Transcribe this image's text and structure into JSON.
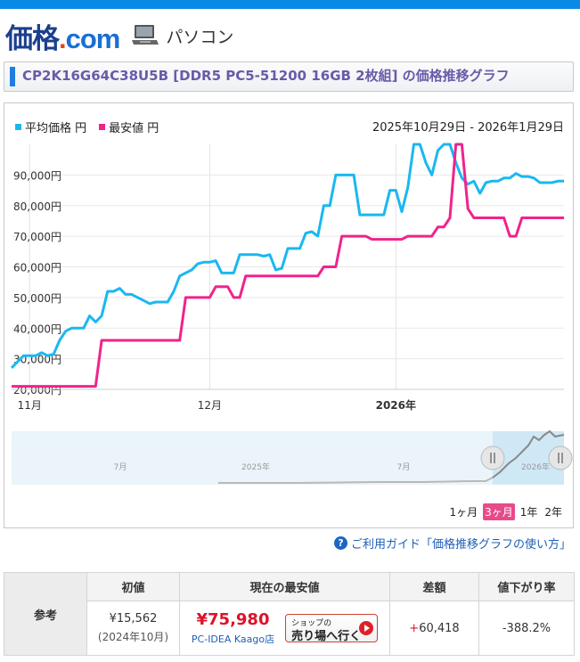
{
  "header": {
    "logo_main": "価格",
    "logo_dot": ".",
    "logo_com": "com",
    "section": "パソコン"
  },
  "title": "CP2K16G64C38U5B [DDR5 PC5-51200 16GB 2枚組] の価格推移グラフ",
  "legend": {
    "avg_label": "平均価格 円",
    "min_label": "最安値 円"
  },
  "date_range": "2025年10月29日 - 2026年1月29日",
  "periods": [
    {
      "label": "1ヶ月",
      "active": false
    },
    {
      "label": "3ヶ月",
      "active": true
    },
    {
      "label": "1年",
      "active": false
    },
    {
      "label": "2年",
      "active": false
    }
  ],
  "guide_text": "ご利用ガイド「価格推移グラフの使い方」",
  "summary": {
    "label": "参考",
    "headers": [
      "初値",
      "現在の最安値",
      "差額",
      "値下がり率"
    ],
    "initial_price": "¥15,562",
    "initial_date": "(2024年10月)",
    "current_lowest": "¥75,980",
    "shop_name": "PC-IDEA Kaago店",
    "shop_button_line1": "ショップの",
    "shop_button_line2": "売り場へ行く",
    "diff_sign": "+",
    "diff_value": "60,418",
    "rate": "-388.2%"
  },
  "colors": {
    "avg": "#1ab8f0",
    "min": "#f0238c",
    "accent_blue": "#0a8ae6"
  },
  "chart_data": {
    "type": "line",
    "title": "",
    "xlabel": "",
    "ylabel": "",
    "ylim": [
      20000,
      100000
    ],
    "yticks": [
      "20,000円",
      "30,000円",
      "40,000円",
      "50,000円",
      "60,000円",
      "70,000円",
      "80,000円",
      "90,000円"
    ],
    "yvals": [
      20000,
      30000,
      40000,
      50000,
      60000,
      70000,
      80000,
      90000
    ],
    "xlim": [
      0,
      92
    ],
    "xticks": [
      {
        "label": "11月",
        "x": 3,
        "bold": false
      },
      {
        "label": "12月",
        "x": 33,
        "bold": false
      },
      {
        "label": "2026年",
        "x": 64,
        "bold": true
      }
    ],
    "x_date_origin": "2025-10-29",
    "series": [
      {
        "name": "平均価格",
        "points": [
          [
            0,
            27000
          ],
          [
            1,
            29000
          ],
          [
            2,
            31000
          ],
          [
            3,
            31000
          ],
          [
            4,
            31000
          ],
          [
            5,
            32000
          ],
          [
            6,
            31000
          ],
          [
            7,
            31500
          ],
          [
            8,
            36000
          ],
          [
            9,
            39000
          ],
          [
            10,
            40000
          ],
          [
            11,
            40000
          ],
          [
            12,
            40000
          ],
          [
            13,
            44000
          ],
          [
            14,
            42000
          ],
          [
            15,
            44000
          ],
          [
            16,
            52000
          ],
          [
            17,
            52000
          ],
          [
            18,
            53000
          ],
          [
            19,
            51000
          ],
          [
            20,
            51000
          ],
          [
            21,
            50000
          ],
          [
            22,
            49000
          ],
          [
            23,
            48000
          ],
          [
            24,
            48500
          ],
          [
            25,
            48500
          ],
          [
            26,
            48500
          ],
          [
            27,
            52000
          ],
          [
            28,
            57000
          ],
          [
            29,
            58000
          ],
          [
            30,
            59000
          ],
          [
            31,
            61000
          ],
          [
            32,
            61500
          ],
          [
            33,
            61500
          ],
          [
            34,
            62000
          ],
          [
            35,
            58000
          ],
          [
            36,
            58000
          ],
          [
            37,
            58000
          ],
          [
            38,
            64000
          ],
          [
            39,
            64000
          ],
          [
            40,
            64000
          ],
          [
            41,
            64000
          ],
          [
            42,
            63500
          ],
          [
            43,
            64000
          ],
          [
            44,
            59000
          ],
          [
            45,
            59500
          ],
          [
            46,
            66000
          ],
          [
            47,
            66000
          ],
          [
            48,
            66000
          ],
          [
            49,
            71000
          ],
          [
            50,
            71500
          ],
          [
            51,
            70000
          ],
          [
            52,
            80000
          ],
          [
            53,
            80000
          ],
          [
            54,
            90000
          ],
          [
            55,
            90000
          ],
          [
            56,
            90000
          ],
          [
            57,
            90000
          ],
          [
            58,
            77000
          ],
          [
            59,
            77000
          ],
          [
            60,
            77000
          ],
          [
            61,
            77000
          ],
          [
            62,
            77000
          ],
          [
            63,
            85000
          ],
          [
            64,
            85000
          ],
          [
            65,
            78000
          ],
          [
            66,
            86000
          ],
          [
            67,
            100000
          ],
          [
            68,
            100000
          ],
          [
            69,
            94000
          ],
          [
            70,
            90000
          ],
          [
            71,
            98000
          ],
          [
            72,
            100000
          ],
          [
            73,
            100000
          ],
          [
            74,
            94000
          ],
          [
            75,
            89000
          ],
          [
            76,
            87000
          ],
          [
            77,
            88000
          ],
          [
            78,
            84000
          ],
          [
            79,
            87500
          ],
          [
            80,
            88000
          ],
          [
            81,
            88000
          ],
          [
            82,
            89000
          ],
          [
            83,
            89000
          ],
          [
            84,
            90500
          ],
          [
            85,
            89500
          ],
          [
            86,
            89500
          ],
          [
            87,
            89000
          ],
          [
            88,
            87500
          ],
          [
            89,
            87500
          ],
          [
            90,
            87500
          ],
          [
            91,
            88000
          ],
          [
            92,
            88000
          ]
        ]
      },
      {
        "name": "最安値",
        "points": [
          [
            0,
            21000
          ],
          [
            14,
            21000
          ],
          [
            15,
            36000
          ],
          [
            28,
            36000
          ],
          [
            29,
            50000
          ],
          [
            33,
            50000
          ],
          [
            34,
            53500
          ],
          [
            36,
            53500
          ],
          [
            37,
            50000
          ],
          [
            38,
            50000
          ],
          [
            39,
            57000
          ],
          [
            51,
            57000
          ],
          [
            52,
            60000
          ],
          [
            54,
            60000
          ],
          [
            55,
            70000
          ],
          [
            59,
            70000
          ],
          [
            60,
            69000
          ],
          [
            65,
            69000
          ],
          [
            66,
            70000
          ],
          [
            70,
            70000
          ],
          [
            71,
            73000
          ],
          [
            72,
            73000
          ],
          [
            73,
            76000
          ],
          [
            74,
            100000
          ],
          [
            75,
            100000
          ],
          [
            76,
            79000
          ],
          [
            77,
            76000
          ],
          [
            82,
            76000
          ],
          [
            83,
            70000
          ],
          [
            84,
            70000
          ],
          [
            85,
            76000
          ],
          [
            92,
            76000
          ]
        ]
      }
    ],
    "navigator": {
      "labels": [
        "7月",
        "2025年",
        "7月",
        "2026年"
      ]
    }
  }
}
